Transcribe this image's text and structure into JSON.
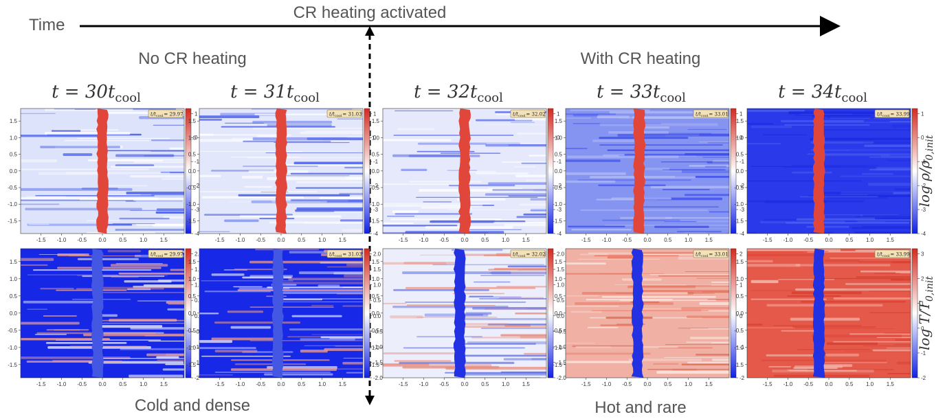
{
  "header": {
    "time_label": "Time",
    "event_label": "CR heating activated"
  },
  "phases": [
    {
      "label": "No CR heating",
      "outcome": "Cold and dense"
    },
    {
      "label": "With CR heating",
      "outcome": "Hot and rare"
    }
  ],
  "badge": {
    "prefix": "t/t",
    "sub": "cool"
  },
  "axes": {
    "xticks": [
      "-1.5",
      "-1.0",
      "-0.5",
      "0.0",
      "0.5",
      "1.0",
      "1.5"
    ],
    "yticks": [
      "1.5",
      "1.0",
      "0.5",
      "0.0",
      "-0.5",
      "-1.0",
      "-1.5"
    ]
  },
  "rows": [
    {
      "label": "log ρ/ρ",
      "sub": "0,init"
    },
    {
      "label": "log T/T",
      "sub": "0,init"
    }
  ],
  "panels": [
    {
      "title": "t = 30t",
      "title_sub": "cool",
      "badge_value": "= 29.97",
      "top_colorbar": [
        "1",
        "0",
        "-1",
        "-2",
        "-3",
        "-4"
      ],
      "bottom_colorbar": [
        "2.0",
        "1.5",
        "1.0",
        "0.5",
        "0.0",
        "-0.5",
        "-1.0",
        "-1.5",
        "-2"
      ]
    },
    {
      "title": "t = 31t",
      "title_sub": "cool",
      "badge_value": "= 31.03",
      "top_colorbar": [
        "1",
        "0",
        "-1",
        "-2",
        "-3",
        "-4"
      ],
      "bottom_colorbar": [
        "2.0",
        "1.5",
        "1.0",
        "0.5",
        "0.0",
        "-0.5",
        "-1.0",
        "-1.5",
        "-2.0"
      ]
    },
    {
      "title": "t = 32t",
      "title_sub": "cool",
      "badge_value": "= 32.02",
      "top_colorbar": [
        "1",
        "0",
        "-1",
        "-2",
        "-3",
        "-4"
      ],
      "bottom_colorbar": [
        "2.0",
        "1.5",
        "1.0",
        "0.5",
        "0.0",
        "-0.5",
        "-1.0",
        "-1.5",
        "-2.0"
      ]
    },
    {
      "title": "t = 33t",
      "title_sub": "cool",
      "badge_value": "= 33.01",
      "top_colorbar": [
        "1",
        "0",
        "-1",
        "-2",
        "-3",
        "-4"
      ],
      "bottom_colorbar": [
        "2",
        "1",
        "0",
        "-1",
        "-2"
      ]
    },
    {
      "title": "t = 34t",
      "title_sub": "cool",
      "badge_value": "= 33.99",
      "top_colorbar": [
        "1",
        "0",
        "-1",
        "-2",
        "-3",
        "-4"
      ],
      "bottom_colorbar": [
        "3",
        "2",
        "1",
        "0",
        "-1",
        "-2"
      ]
    }
  ]
}
